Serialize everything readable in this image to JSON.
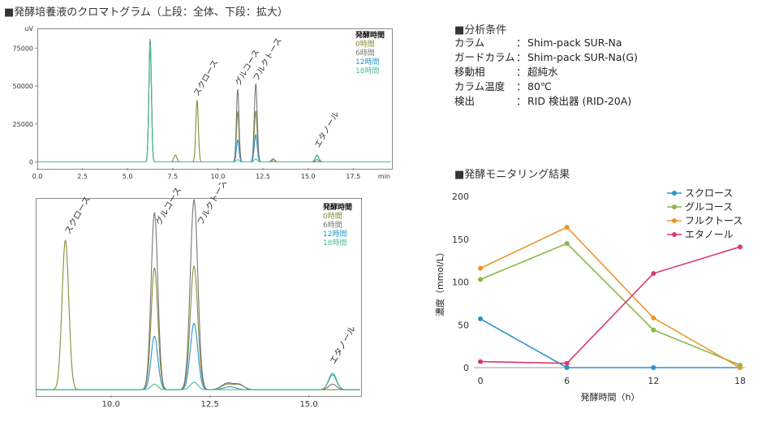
{
  "page_title": "■発酵培養液のクロマトグラム（上段：全体、下段：拡大）",
  "conditions": {
    "heading": "■分析条件",
    "rows": [
      {
        "key": "カラム",
        "sep": "：",
        "value": "Shim-pack SUR-Na"
      },
      {
        "key": "ガードカラム",
        "sep": "：",
        "value": "Shim-pack SUR-Na(G)"
      },
      {
        "key": "移動相",
        "sep": "：",
        "value": "超純水"
      },
      {
        "key": "カラム温度",
        "sep": "：",
        "value": "80℃"
      },
      {
        "key": "検出",
        "sep": "：",
        "value": "RID 検出器 (RID-20A)"
      }
    ]
  },
  "monitor_heading": "■発酵モニタリング結果",
  "colors": {
    "t0": "#8a8a3c",
    "t6": "#777777",
    "t12": "#2a93cc",
    "t18": "#4dbd93"
  },
  "chart_data": [
    {
      "type": "line",
      "name_label": "top-chromatogram",
      "y_unit": "uV",
      "x_unit": "min",
      "x_ticks": [
        "0.0",
        "2.5",
        "5.0",
        "7.5",
        "10.0",
        "12.5",
        "15.0",
        "17.5"
      ],
      "y_ticks": [
        "0",
        "25000",
        "50000",
        "75000"
      ],
      "xlim": [
        0,
        19.6
      ],
      "ylim": [
        -4000,
        88000
      ],
      "legend": {
        "title": "発酵時間",
        "items": [
          "0時間",
          "6時間",
          "12時間",
          "18時間"
        ]
      },
      "peak_labels": [
        {
          "text": "スクロース",
          "x": 8.9,
          "y": 43000
        },
        {
          "text": "グルコース",
          "x": 11.2,
          "y": 50000
        },
        {
          "text": "フルクトース",
          "x": 12.2,
          "y": 53000
        },
        {
          "text": "エタノール",
          "x": 15.6,
          "y": 9000
        }
      ],
      "series": [
        {
          "name": "0時間",
          "peaks": [
            [
              6.25,
              81000,
              0.07
            ],
            [
              7.65,
              4500,
              0.08
            ],
            [
              8.85,
              40500,
              0.07
            ],
            [
              11.1,
              33000,
              0.07
            ],
            [
              12.1,
              33500,
              0.08
            ],
            [
              13.1,
              1500,
              0.08
            ]
          ]
        },
        {
          "name": "6時間",
          "peaks": [
            [
              6.25,
              79000,
              0.07
            ],
            [
              11.1,
              48000,
              0.07
            ],
            [
              12.1,
              51500,
              0.08
            ],
            [
              13.05,
              2000,
              0.08
            ],
            [
              15.5,
              1500,
              0.1
            ]
          ]
        },
        {
          "name": "12時間",
          "peaks": [
            [
              6.25,
              80000,
              0.07
            ],
            [
              11.1,
              14500,
              0.07
            ],
            [
              12.1,
              18000,
              0.08
            ],
            [
              15.5,
              4000,
              0.1
            ]
          ]
        },
        {
          "name": "18時間",
          "peaks": [
            [
              6.25,
              78000,
              0.07
            ],
            [
              11.1,
              1500,
              0.07
            ],
            [
              12.1,
              2000,
              0.08
            ],
            [
              15.5,
              4500,
              0.1
            ]
          ]
        }
      ]
    },
    {
      "type": "line",
      "name_label": "bottom-chromatogram",
      "x_ticks": [
        "10.0",
        "12.5",
        "15.0"
      ],
      "xlim": [
        8.1,
        16.3
      ],
      "ylim": [
        -1500,
        52000
      ],
      "legend": {
        "title": "発酵時間",
        "items": [
          "0時間",
          "6時間",
          "12時間",
          "18時間"
        ]
      },
      "peak_labels": [
        {
          "text": "スクロース",
          "x": 8.95,
          "y": 42000
        },
        {
          "text": "グルコース",
          "x": 11.25,
          "y": 44500
        },
        {
          "text": "フルクトース",
          "x": 12.3,
          "y": 44500
        },
        {
          "text": "エタノール",
          "x": 15.65,
          "y": 6800
        }
      ],
      "series": [
        {
          "name": "0時間",
          "peaks": [
            [
              8.85,
              40500,
              0.085
            ],
            [
              11.1,
              33000,
              0.085
            ],
            [
              12.1,
              33500,
              0.095
            ],
            [
              12.95,
              1500,
              0.15
            ],
            [
              13.25,
              1200,
              0.12
            ]
          ]
        },
        {
          "name": "6時間",
          "peaks": [
            [
              11.1,
              48000,
              0.085
            ],
            [
              12.1,
              51500,
              0.095
            ],
            [
              12.95,
              1800,
              0.15
            ],
            [
              13.25,
              1300,
              0.12
            ],
            [
              15.6,
              1500,
              0.1
            ]
          ]
        },
        {
          "name": "12時間",
          "peaks": [
            [
              11.1,
              14500,
              0.085
            ],
            [
              12.1,
              18000,
              0.095
            ],
            [
              13.0,
              800,
              0.15
            ],
            [
              15.6,
              4000,
              0.1
            ]
          ]
        },
        {
          "name": "18時間",
          "peaks": [
            [
              11.1,
              1500,
              0.085
            ],
            [
              12.1,
              2000,
              0.095
            ],
            [
              15.6,
              4500,
              0.1
            ]
          ]
        }
      ]
    },
    {
      "type": "line",
      "name_label": "fermentation-monitoring",
      "xlabel": "発酵時間（h）",
      "ylabel": "濃度（mmol/L）",
      "x": [
        0,
        6,
        12,
        18
      ],
      "x_ticks": [
        "0",
        "6",
        "12",
        "18"
      ],
      "y_ticks": [
        "0",
        "50",
        "100",
        "150",
        "200"
      ],
      "xlim": [
        0,
        18
      ],
      "ylim": [
        0,
        200
      ],
      "grid": false,
      "legend_position": "top-right",
      "series": [
        {
          "name": "スクロース",
          "color": "#2a93cc",
          "values": [
            57,
            0,
            0,
            0
          ]
        },
        {
          "name": "グルコース",
          "color": "#8ab84a",
          "values": [
            103,
            145,
            44,
            3
          ]
        },
        {
          "name": "フルクトース",
          "color": "#f0952a",
          "values": [
            116,
            164,
            58,
            0
          ]
        },
        {
          "name": "エタノール",
          "color": "#d83a6e",
          "values": [
            7,
            5,
            110,
            141
          ]
        }
      ]
    }
  ]
}
